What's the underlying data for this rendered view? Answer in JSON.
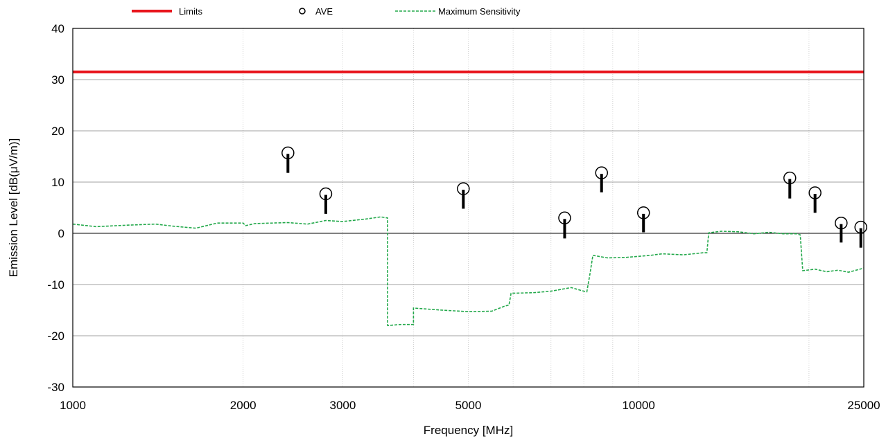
{
  "chart_data": {
    "type": "line",
    "title": "",
    "xlabel": "Frequency [MHz]",
    "ylabel": "Emission Level [dB(μV/m)]",
    "x_scale": "log",
    "xlim": [
      1000,
      25000
    ],
    "ylim": [
      -30,
      40
    ],
    "x_ticks": [
      1000,
      2000,
      3000,
      5000,
      10000,
      25000
    ],
    "x_tick_labels": [
      "1000",
      "2000",
      "3000",
      "5000",
      "10000",
      "25000"
    ],
    "y_ticks": [
      -30,
      -20,
      -10,
      0,
      10,
      20,
      30,
      40
    ],
    "y_tick_labels": [
      "-30",
      "-20",
      "-10",
      "0",
      "10",
      "20",
      "30",
      "40"
    ],
    "grid": true,
    "legend_position": "top",
    "colors": {
      "limits": "#e8141b",
      "ave": "#000000",
      "sensitivity": "#22a84a"
    },
    "series": [
      {
        "name": "Limits",
        "style": "solid",
        "points": [
          [
            1000,
            31.5
          ],
          [
            25000,
            31.5
          ]
        ]
      },
      {
        "name": "AVE",
        "style": "marker",
        "points": [
          [
            2400,
            15.7
          ],
          [
            2800,
            7.7
          ],
          [
            4900,
            8.7
          ],
          [
            7400,
            3.0
          ],
          [
            8600,
            11.8
          ],
          [
            10200,
            4.0
          ],
          [
            18500,
            10.8
          ],
          [
            20500,
            7.9
          ],
          [
            22800,
            2.0
          ],
          [
            24700,
            1.2
          ]
        ],
        "bars": [
          [
            11.8,
            15.5
          ],
          [
            3.8,
            7.5
          ],
          [
            4.8,
            8.5
          ],
          [
            -1.0,
            2.8
          ],
          [
            8.0,
            11.6
          ],
          [
            0.2,
            3.8
          ],
          [
            6.8,
            10.6
          ],
          [
            4.0,
            7.7
          ],
          [
            -1.8,
            1.8
          ],
          [
            -2.8,
            1.0
          ]
        ]
      },
      {
        "name": "Maximum Sensitivity",
        "style": "dashed",
        "points": [
          [
            1000,
            1.8
          ],
          [
            1100,
            1.3
          ],
          [
            1250,
            1.6
          ],
          [
            1400,
            1.8
          ],
          [
            1500,
            1.4
          ],
          [
            1650,
            1.0
          ],
          [
            1800,
            2.0
          ],
          [
            2000,
            2.0
          ],
          [
            2020,
            1.5
          ],
          [
            2100,
            1.9
          ],
          [
            2400,
            2.1
          ],
          [
            2600,
            1.8
          ],
          [
            2800,
            2.5
          ],
          [
            3000,
            2.3
          ],
          [
            3300,
            2.8
          ],
          [
            3500,
            3.2
          ],
          [
            3600,
            3.0
          ],
          [
            3600,
            -18.0
          ],
          [
            3800,
            -17.8
          ],
          [
            4000,
            -17.8
          ],
          [
            4000,
            -14.6
          ],
          [
            4500,
            -15.0
          ],
          [
            5000,
            -15.3
          ],
          [
            5500,
            -15.2
          ],
          [
            5800,
            -14.2
          ],
          [
            5900,
            -14.0
          ],
          [
            5950,
            -11.7
          ],
          [
            6500,
            -11.6
          ],
          [
            7000,
            -11.3
          ],
          [
            7600,
            -10.6
          ],
          [
            8000,
            -11.3
          ],
          [
            8100,
            -11.4
          ],
          [
            8200,
            -8.0
          ],
          [
            8300,
            -4.3
          ],
          [
            8800,
            -4.8
          ],
          [
            9500,
            -4.7
          ],
          [
            10500,
            -4.3
          ],
          [
            11000,
            -4.0
          ],
          [
            12000,
            -4.2
          ],
          [
            13000,
            -3.8
          ],
          [
            13200,
            -3.8
          ],
          [
            13300,
            0.1
          ],
          [
            14000,
            0.4
          ],
          [
            15000,
            0.3
          ],
          [
            16000,
            -0.1
          ],
          [
            17000,
            0.2
          ],
          [
            18000,
            -0.1
          ],
          [
            19000,
            -0.1
          ],
          [
            19300,
            -0.3
          ],
          [
            19500,
            -7.3
          ],
          [
            20500,
            -7.0
          ],
          [
            21500,
            -7.5
          ],
          [
            22500,
            -7.2
          ],
          [
            23500,
            -7.6
          ],
          [
            25000,
            -6.8
          ]
        ]
      }
    ]
  }
}
